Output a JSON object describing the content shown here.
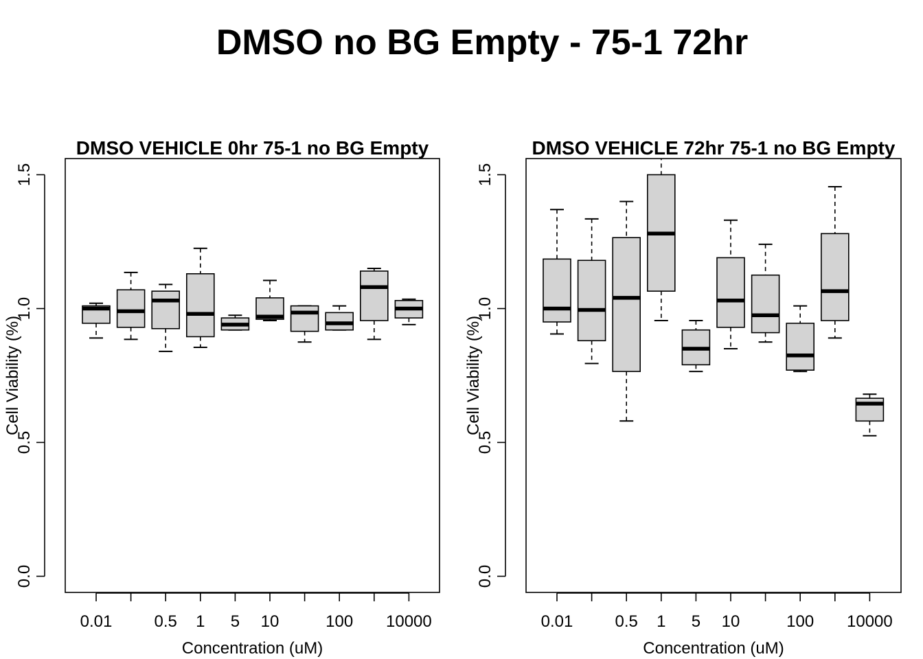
{
  "figure": {
    "title": "DMSO no BG Empty - 75-1 72hr"
  },
  "chart_data": [
    {
      "type": "boxplot",
      "title": "DMSO VEHICLE 0hr 75-1 no BG Empty",
      "xlabel": "Concentration (uM)",
      "ylabel": "Cell Viability (%)",
      "ylim": [
        0,
        1.5
      ],
      "yticks": [
        "0.0",
        "0.5",
        "1.0",
        "1.5"
      ],
      "xtick_labels": [
        "0.01",
        "",
        "0.5",
        "1",
        "5",
        "10",
        "",
        "100",
        "",
        "10000"
      ],
      "box_fill": "#d3d3d3",
      "boxes": [
        {
          "whisker_low": 0.89,
          "q1": 0.945,
          "median": 1.0,
          "q3": 1.01,
          "whisker_high": 1.02
        },
        {
          "whisker_low": 0.885,
          "q1": 0.93,
          "median": 0.99,
          "q3": 1.07,
          "whisker_high": 1.135
        },
        {
          "whisker_low": 0.84,
          "q1": 0.925,
          "median": 1.03,
          "q3": 1.065,
          "whisker_high": 1.09
        },
        {
          "whisker_low": 0.855,
          "q1": 0.895,
          "median": 0.98,
          "q3": 1.13,
          "whisker_high": 1.225
        },
        {
          "whisker_low": 0.92,
          "q1": 0.92,
          "median": 0.94,
          "q3": 0.965,
          "whisker_high": 0.975
        },
        {
          "whisker_low": 0.955,
          "q1": 0.96,
          "median": 0.97,
          "q3": 1.04,
          "whisker_high": 1.105
        },
        {
          "whisker_low": 0.875,
          "q1": 0.915,
          "median": 0.985,
          "q3": 1.01,
          "whisker_high": 1.01
        },
        {
          "whisker_low": 0.92,
          "q1": 0.92,
          "median": 0.945,
          "q3": 0.985,
          "whisker_high": 1.01
        },
        {
          "whisker_low": 0.885,
          "q1": 0.955,
          "median": 1.08,
          "q3": 1.14,
          "whisker_high": 1.15
        },
        {
          "whisker_low": 0.94,
          "q1": 0.965,
          "median": 1.0,
          "q3": 1.03,
          "whisker_high": 1.035
        }
      ]
    },
    {
      "type": "boxplot",
      "title": "DMSO VEHICLE 72hr 75-1 no BG Empty",
      "xlabel": "Concentration (uM)",
      "ylabel": "Cell Viability (%)",
      "ylim": [
        0,
        1.5
      ],
      "yticks": [
        "0.0",
        "0.5",
        "1.0",
        "1.5"
      ],
      "xtick_labels": [
        "0.01",
        "",
        "0.5",
        "1",
        "5",
        "10",
        "",
        "100",
        "",
        "10000"
      ],
      "box_fill": "#d3d3d3",
      "boxes": [
        {
          "whisker_low": 0.905,
          "q1": 0.95,
          "median": 1.0,
          "q3": 1.185,
          "whisker_high": 1.37
        },
        {
          "whisker_low": 0.795,
          "q1": 0.88,
          "median": 0.995,
          "q3": 1.18,
          "whisker_high": 1.335
        },
        {
          "whisker_low": 0.58,
          "q1": 0.765,
          "median": 1.04,
          "q3": 1.265,
          "whisker_high": 1.4
        },
        {
          "whisker_low": 0.955,
          "q1": 1.065,
          "median": 1.28,
          "q3": 1.5,
          "whisker_high": 1.57
        },
        {
          "whisker_low": 0.765,
          "q1": 0.79,
          "median": 0.85,
          "q3": 0.92,
          "whisker_high": 0.955
        },
        {
          "whisker_low": 0.85,
          "q1": 0.93,
          "median": 1.03,
          "q3": 1.19,
          "whisker_high": 1.33
        },
        {
          "whisker_low": 0.875,
          "q1": 0.91,
          "median": 0.975,
          "q3": 1.125,
          "whisker_high": 1.24
        },
        {
          "whisker_low": 0.765,
          "q1": 0.77,
          "median": 0.825,
          "q3": 0.945,
          "whisker_high": 1.01
        },
        {
          "whisker_low": 0.89,
          "q1": 0.955,
          "median": 1.065,
          "q3": 1.28,
          "whisker_high": 1.455
        },
        {
          "whisker_low": 0.525,
          "q1": 0.58,
          "median": 0.645,
          "q3": 0.665,
          "whisker_high": 0.68
        }
      ]
    }
  ]
}
